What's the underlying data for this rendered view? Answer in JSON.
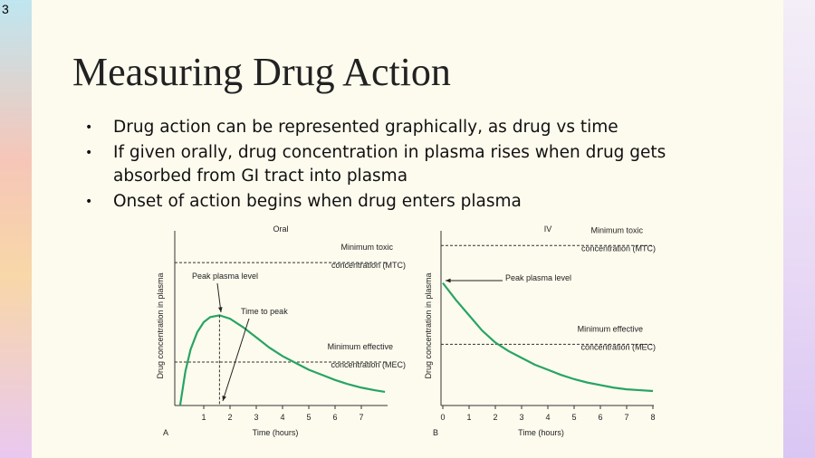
{
  "slide_number": "3",
  "title": "Measuring Drug Action",
  "bullets": [
    "Drug action can be represented graphically, as drug vs time",
    "If given orally, drug concentration in plasma rises when drug gets absorbed from GI tract into plasma",
    "Onset of action begins when drug enters plasma"
  ],
  "chart_data": [
    {
      "type": "line",
      "title": "Oral",
      "panel_label": "A",
      "x_label": "Time (hours)",
      "y_label": "Drug concentration in plasma",
      "xlim": [
        0,
        8
      ],
      "xticks": [
        1,
        2,
        3,
        4,
        5,
        6,
        7
      ],
      "ylim": [
        0,
        100
      ],
      "color": "#27a463",
      "x": [
        0.1,
        0.3,
        0.5,
        0.75,
        1,
        1.25,
        1.6,
        2,
        2.5,
        3,
        3.5,
        4,
        4.5,
        5,
        5.5,
        6,
        6.5,
        7,
        7.5,
        7.9
      ],
      "values": [
        0,
        20,
        33,
        43,
        49,
        52,
        53,
        51,
        46,
        40,
        34,
        29,
        25,
        21,
        18,
        15,
        12.5,
        10.5,
        9,
        8
      ],
      "reference_lines": [
        {
          "label": [
            "Minimum toxic",
            "concentration (MTC)"
          ],
          "value": 84
        },
        {
          "label": [
            "Minimum effective",
            "concentration (MEC)"
          ],
          "value": 25.5
        }
      ],
      "annotations": [
        "Peak plasma level",
        "Time to peak"
      ]
    },
    {
      "type": "line",
      "title": "IV",
      "panel_label": "B",
      "x_label": "Time (hours)",
      "y_label": "Drug concentration in plasma",
      "xlim": [
        0,
        8
      ],
      "xticks": [
        0,
        1,
        2,
        3,
        4,
        5,
        6,
        7,
        8
      ],
      "ylim": [
        0,
        100
      ],
      "color": "#27a463",
      "x": [
        0,
        0.5,
        1,
        1.5,
        2,
        2.5,
        3,
        3.5,
        4,
        4.5,
        5,
        5.5,
        6,
        6.5,
        7,
        7.5,
        8
      ],
      "values": [
        72,
        62,
        53,
        44,
        37,
        32,
        28,
        24,
        21,
        18,
        15.5,
        13.5,
        12,
        10.5,
        9.5,
        9,
        8.5
      ],
      "reference_lines": [
        {
          "label": [
            "Minimum toxic",
            "concentration (MTC)"
          ],
          "value": 94
        },
        {
          "label": [
            "Minimum effective",
            "concentration (MEC)"
          ],
          "value": 36
        }
      ],
      "annotations": [
        "Peak plasma level"
      ]
    }
  ]
}
